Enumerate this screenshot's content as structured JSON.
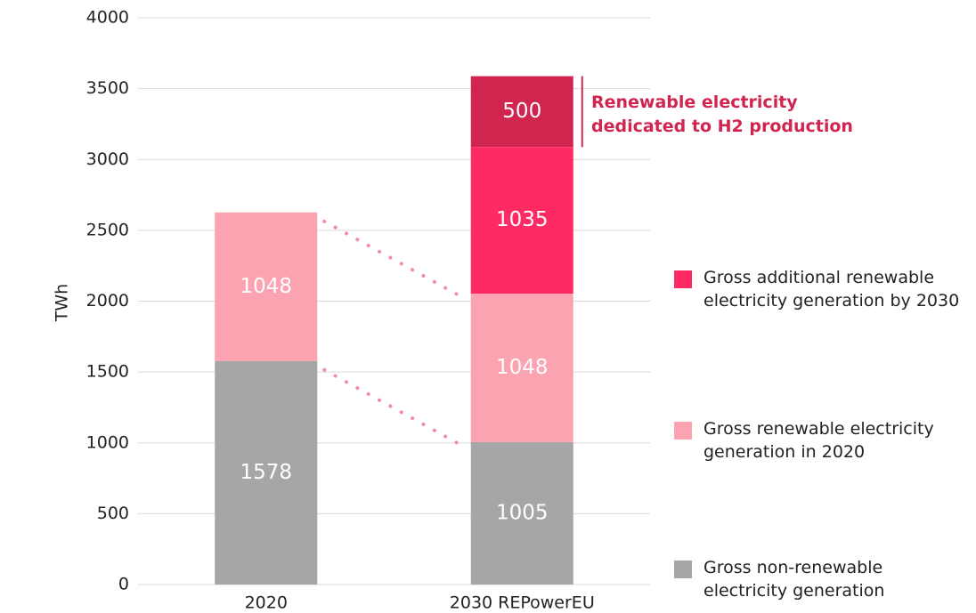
{
  "chart_data": {
    "type": "stacked_bar",
    "y_axis_label": "TWh",
    "categories": [
      "2020",
      "2030 REPowerEU"
    ],
    "series": [
      {
        "name": "Gross non-renewable electricity generation",
        "color": "#a6a6a6",
        "values": [
          1578,
          1005
        ]
      },
      {
        "name": "Gross renewable electricity generation in 2020",
        "color": "#fba3b0",
        "values": [
          1048,
          1048
        ]
      },
      {
        "name": "Gross additional renewable electricity generation by 2030",
        "color": "#ff2a64",
        "values": [
          null,
          1035
        ]
      },
      {
        "name": "Renewable electricity dedicated to H2 production",
        "color": "#d1244f",
        "values": [
          null,
          500
        ]
      }
    ],
    "ylim": [
      0,
      4000
    ],
    "yticks": [
      0,
      500,
      1000,
      1500,
      2000,
      2500,
      3000,
      3500,
      4000
    ],
    "grid": true
  }
}
